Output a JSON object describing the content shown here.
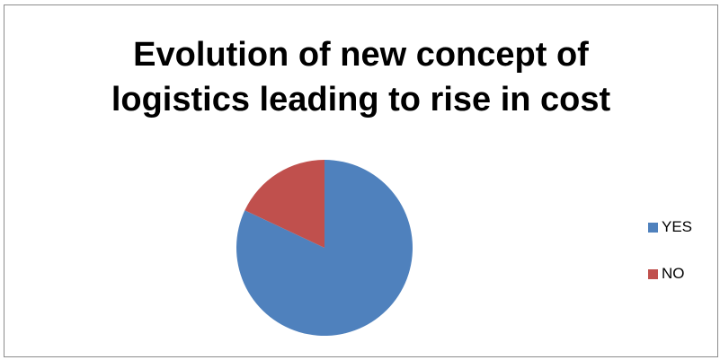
{
  "chart_data": {
    "type": "pie",
    "title": "Evolution of new concept of logistics leading to rise in cost",
    "title_lines": [
      "Evolution of new concept of",
      "logistics leading to rise in cost"
    ],
    "categories": [
      "YES",
      "NO"
    ],
    "values": [
      82,
      18
    ],
    "colors": [
      "#4f81bd",
      "#c0504d"
    ],
    "start_angle_deg": 0,
    "direction": "clockwise",
    "legend_position": "right"
  }
}
